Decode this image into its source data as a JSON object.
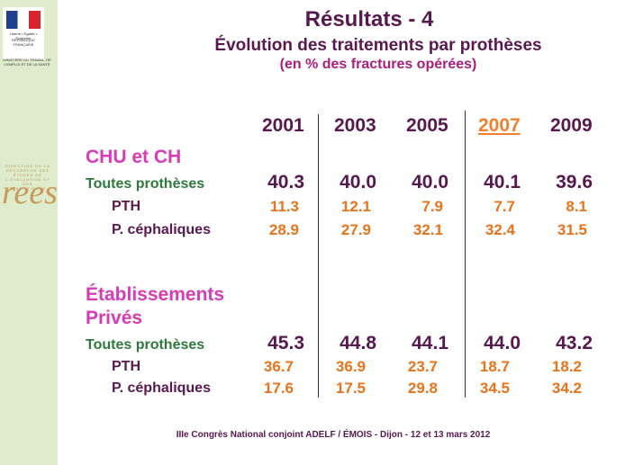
{
  "sidebar": {
    "motto": "Liberté • Égalité • Fraternité",
    "republic": "RÉPUBLIQUE FRANÇAISE",
    "ministry": "MINISTÈRE DU TRAVAIL, DE L'EMPLOI ET DE LA SANTÉ",
    "drees_small": "DIRECTION DE LA RECHERCHE DES ÉTUDES DE L'ÉVALUATION ET DES STATISTIQUES",
    "drees_big": "rees"
  },
  "title": "Résultats - 4",
  "subtitle": "Évolution des traitements par prothèses",
  "subtitle2": "(en % des fractures opérées)",
  "years": [
    "2001",
    "2003",
    "2005",
    "2007",
    "2009"
  ],
  "sections": [
    {
      "name": "CHU et CH",
      "rows": [
        {
          "label": "Toutes prothèses",
          "values": [
            "40.3",
            "40.0",
            "40.0",
            "40.1",
            "39.6"
          ]
        },
        {
          "label": "PTH",
          "values": [
            "11.3",
            "12.1",
            "7.9",
            "7.7",
            "8.1"
          ]
        },
        {
          "label": "P. céphaliques",
          "values": [
            "28.9",
            "27.9",
            "32.1",
            "32.4",
            "31.5"
          ]
        }
      ]
    },
    {
      "name_line1": "Établissements",
      "name_line2": "Privés",
      "rows": [
        {
          "label": "Toutes prothèses",
          "values": [
            "45.3",
            "44.8",
            "44.1",
            "44.0",
            "43.2"
          ]
        },
        {
          "label": "PTH",
          "values": [
            "36.7",
            "36.9",
            "23.7",
            "18.7",
            "18.2"
          ]
        },
        {
          "label": "P. céphaliques",
          "values": [
            "17.6",
            "17.5",
            "29.8",
            "34.5",
            "34.2"
          ]
        }
      ]
    }
  ],
  "footer": "IIIe Congrès National conjoint ADELF / ÉMOIS - Dijon - 12 et 13 mars 2012"
}
